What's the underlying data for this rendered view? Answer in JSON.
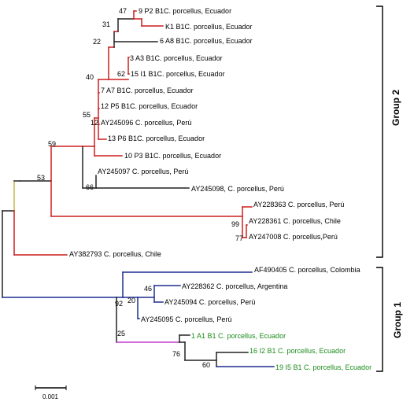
{
  "colors": {
    "red": "#cc1f1f",
    "blue": "#1f2f8f",
    "green": "#1a8c1a",
    "black": "#222222",
    "olive": "#c8b84a",
    "magenta": "#c43ccf"
  },
  "leaves": [
    {
      "id": "L1",
      "label": "9 P2 B1C. porcellus, Ecuador"
    },
    {
      "id": "L2",
      "label": "K1 B1C. porcellus, Ecuador"
    },
    {
      "id": "L3",
      "label": "6 A8 B1C. porcellus, Ecuador"
    },
    {
      "id": "L4",
      "label": "3 A3 B1C. porcellus, Ecuador"
    },
    {
      "id": "L5",
      "label": "15 I1 B1C. porcellus, Ecuador"
    },
    {
      "id": "L6",
      "label": "7 A7 B1C. porcellus, Ecuador"
    },
    {
      "id": "L7",
      "label": "12 P5 B1C. porcellus, Ecuador"
    },
    {
      "id": "L8",
      "label": "AY245096 C. porcellus, Perú"
    },
    {
      "id": "L9",
      "label": "13 P6 B1C. porcellus, Ecuador"
    },
    {
      "id": "L10",
      "label": "10 P3 B1C. porcellus, Ecuador"
    },
    {
      "id": "L11",
      "label": "AY245097 C. porcellus, Perú"
    },
    {
      "id": "L12",
      "label": "AY245098, C. porcellus, Perú"
    },
    {
      "id": "L13",
      "label": "AY228363 C. porcellus, Perú"
    },
    {
      "id": "L14",
      "label": "AY228361 C. porcellus, Chile"
    },
    {
      "id": "L15",
      "label": "AY247008 C. porcellus,Perú"
    },
    {
      "id": "L16",
      "label": "AY382793 C. porcellus, Chile"
    },
    {
      "id": "L17",
      "label": "AF490405 C. porcellus, Colombia"
    },
    {
      "id": "L18",
      "label": "AY228362 C. porcellus, Argentina"
    },
    {
      "id": "L19",
      "label": "AY245094 C. porcellus, Perú"
    },
    {
      "id": "L20",
      "label": "AY245095 C. porcellus, Perú"
    },
    {
      "id": "L21",
      "label": "1 A1 B1 C. porcellus, Ecuador"
    },
    {
      "id": "L22",
      "label": "16 I2 B1 C. porcellus, Ecuador"
    },
    {
      "id": "L23",
      "label": "19 I5 B1 C. porcellus, Ecuador"
    }
  ],
  "bootstrap": [
    {
      "id": "b47",
      "value": "47"
    },
    {
      "id": "b31",
      "value": "31"
    },
    {
      "id": "b22",
      "value": "22"
    },
    {
      "id": "b62",
      "value": "62"
    },
    {
      "id": "b40",
      "value": "40"
    },
    {
      "id": "b55",
      "value": "55"
    },
    {
      "id": "b12",
      "value": "12"
    },
    {
      "id": "b59",
      "value": "59"
    },
    {
      "id": "b53",
      "value": "53"
    },
    {
      "id": "b66",
      "value": "66"
    },
    {
      "id": "b99",
      "value": "99"
    },
    {
      "id": "b77",
      "value": "77"
    },
    {
      "id": "b46",
      "value": "46"
    },
    {
      "id": "b20",
      "value": "20"
    },
    {
      "id": "b92",
      "value": "92"
    },
    {
      "id": "b25",
      "value": "25"
    },
    {
      "id": "b76",
      "value": "76"
    },
    {
      "id": "b60",
      "value": "60"
    }
  ],
  "groups": [
    {
      "id": "g2",
      "label": "Group 2"
    },
    {
      "id": "g1",
      "label": "Group 1"
    }
  ],
  "scale_bar": {
    "label": "0.001"
  }
}
